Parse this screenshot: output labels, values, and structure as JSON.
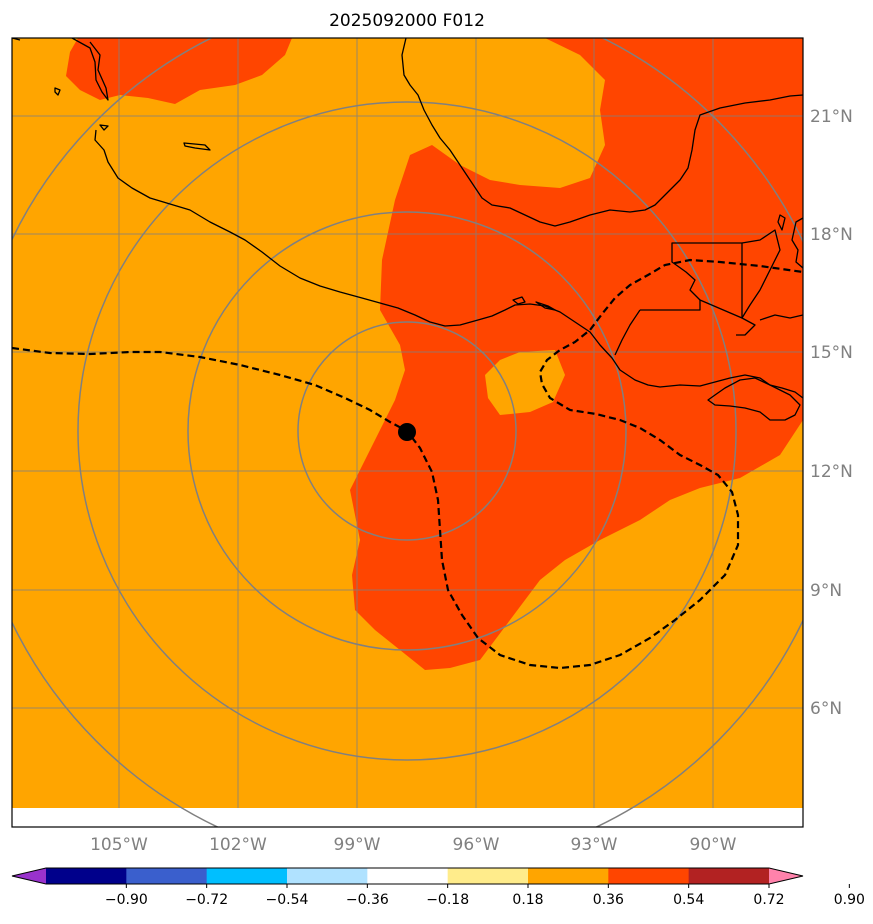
{
  "title": "2025092000 F012",
  "longitude_labels": [
    "105°W",
    "102°W",
    "99°W",
    "96°W",
    "93°W",
    "90°W"
  ],
  "latitude_labels": [
    "21°N",
    "18°N",
    "15°N",
    "12°N",
    "9°N",
    "6°N"
  ],
  "colorbar": {
    "ticks": [
      "−0.90",
      "−0.72",
      "−0.54",
      "−0.36",
      "−0.18",
      "0.18",
      "0.36",
      "0.54",
      "0.72",
      "0.90"
    ],
    "colors": [
      "#9932cc",
      "#00008b",
      "#3a5fcd",
      "#00bfff",
      "#b0e2ff",
      "#ffffff",
      "#ffec8b",
      "#ffa500",
      "#ff4500",
      "#b22222",
      "#ff82ab"
    ]
  },
  "colors": {
    "field_low": "#ffa500",
    "field_high": "#ff4500",
    "range_rings": "#808080",
    "gridlines": "#808080",
    "coastline": "#000000"
  },
  "storm_center": {
    "lat": 13.0,
    "lon": "97.8°W"
  }
}
